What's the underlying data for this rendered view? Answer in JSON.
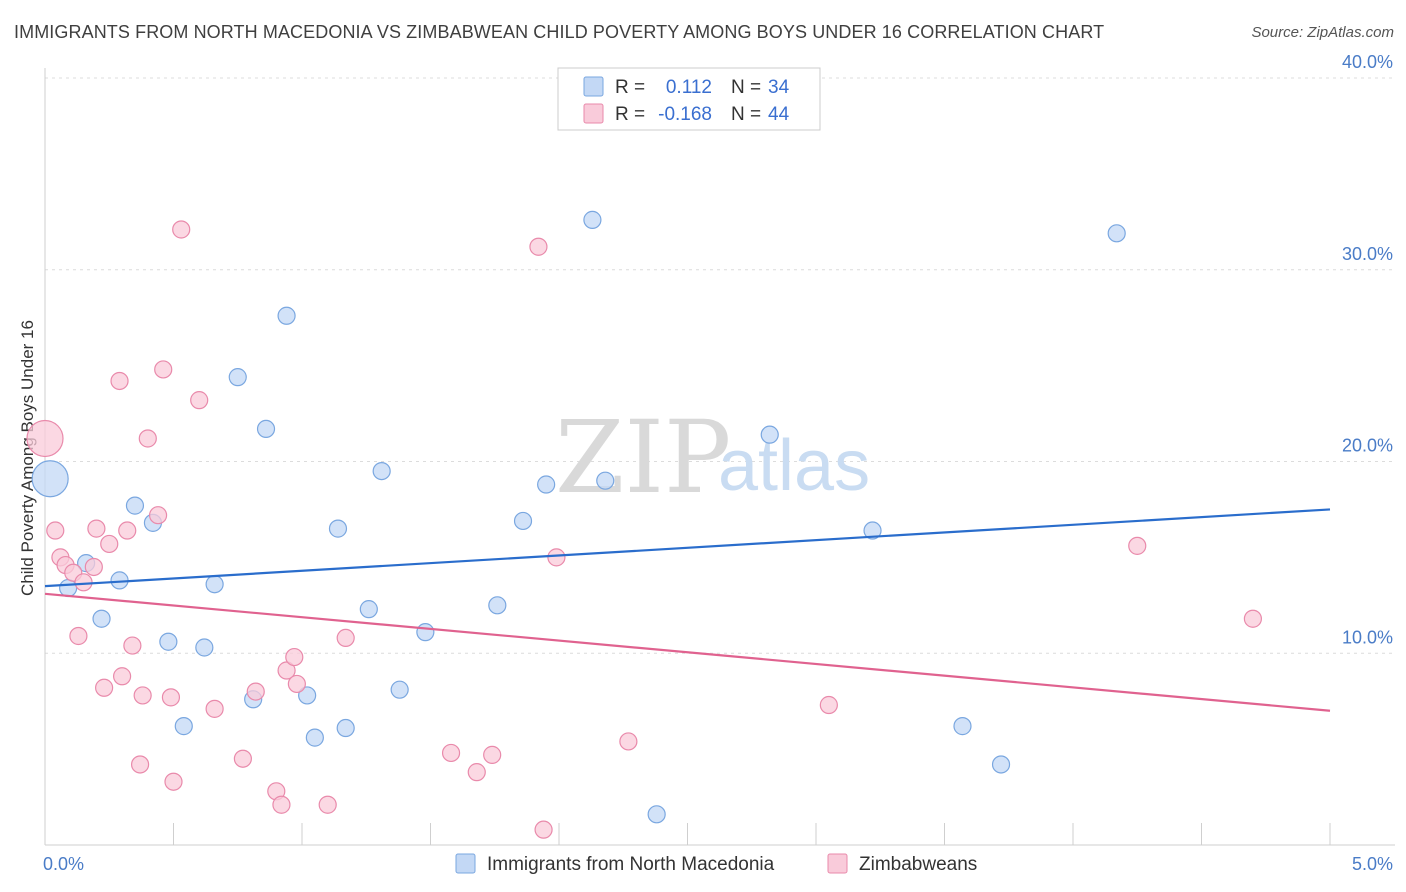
{
  "header": {
    "title": "IMMIGRANTS FROM NORTH MACEDONIA VS ZIMBABWEAN CHILD POVERTY AMONG BOYS UNDER 16 CORRELATION CHART",
    "source": "Source: ZipAtlas.com"
  },
  "watermark": {
    "zip": "ZIP",
    "atlas": "atlas"
  },
  "legend": {
    "r_label": "R =",
    "n_label": "N =",
    "rows": [
      {
        "r_value": "0.112",
        "n_value": "34"
      },
      {
        "r_value": "-0.168",
        "n_value": "44"
      }
    ]
  },
  "colors": {
    "blue_fill": "#c3d8f5",
    "blue_stroke": "#7aa7e0",
    "blue_line": "#2a6dcc",
    "pink_fill": "#f9cbda",
    "pink_stroke": "#e98aab",
    "pink_line": "#e0628f",
    "grid": "#dcdcdc",
    "tick_text": "#4a7cc7"
  },
  "chart_data": {
    "type": "scatter",
    "title": "IMMIGRANTS FROM NORTH MACEDONIA VS ZIMBABWEAN CHILD POVERTY AMONG BOYS UNDER 16 CORRELATION CHART",
    "xlabel": "",
    "ylabel": "Child Poverty Among Boys Under 16",
    "xlim": [
      0,
      5
    ],
    "ylim": [
      0,
      40
    ],
    "x_ticks": [
      "0.0%",
      "5.0%"
    ],
    "y_ticks": [
      {
        "value": 10,
        "label": "10.0%"
      },
      {
        "value": 20,
        "label": "20.0%"
      },
      {
        "value": 30,
        "label": "30.0%"
      },
      {
        "value": 40,
        "label": "40.0%"
      }
    ],
    "series": [
      {
        "name": "Immigrants from North Macedonia",
        "color": "#7aa7e0",
        "trend": {
          "x": [
            0,
            5
          ],
          "y": [
            13.5,
            17.5
          ]
        },
        "points": [
          {
            "x": 0.02,
            "y": 19.1,
            "big": true
          },
          {
            "x": 0.09,
            "y": 13.4
          },
          {
            "x": 0.16,
            "y": 14.7
          },
          {
            "x": 0.22,
            "y": 11.8
          },
          {
            "x": 0.29,
            "y": 13.8
          },
          {
            "x": 0.35,
            "y": 17.7
          },
          {
            "x": 0.42,
            "y": 16.8
          },
          {
            "x": 0.48,
            "y": 10.6
          },
          {
            "x": 0.54,
            "y": 6.2
          },
          {
            "x": 0.62,
            "y": 10.3
          },
          {
            "x": 0.66,
            "y": 13.6
          },
          {
            "x": 0.75,
            "y": 24.4
          },
          {
            "x": 0.81,
            "y": 7.6
          },
          {
            "x": 0.86,
            "y": 21.7
          },
          {
            "x": 0.94,
            "y": 27.6
          },
          {
            "x": 1.02,
            "y": 7.8
          },
          {
            "x": 1.05,
            "y": 5.6
          },
          {
            "x": 1.14,
            "y": 16.5
          },
          {
            "x": 1.17,
            "y": 6.1
          },
          {
            "x": 1.26,
            "y": 12.3
          },
          {
            "x": 1.31,
            "y": 19.5
          },
          {
            "x": 1.38,
            "y": 8.1
          },
          {
            "x": 1.48,
            "y": 11.1
          },
          {
            "x": 1.76,
            "y": 12.5
          },
          {
            "x": 1.86,
            "y": 16.9
          },
          {
            "x": 1.95,
            "y": 18.8
          },
          {
            "x": 2.13,
            "y": 32.6
          },
          {
            "x": 2.18,
            "y": 19.0
          },
          {
            "x": 2.38,
            "y": 1.6
          },
          {
            "x": 2.82,
            "y": 21.4
          },
          {
            "x": 3.22,
            "y": 16.4
          },
          {
            "x": 3.57,
            "y": 6.2
          },
          {
            "x": 3.72,
            "y": 4.2
          },
          {
            "x": 4.17,
            "y": 31.9
          }
        ]
      },
      {
        "name": "Zimbabweans",
        "color": "#e98aab",
        "trend": {
          "x": [
            0,
            5
          ],
          "y": [
            13.1,
            7.0
          ]
        },
        "points": [
          {
            "x": 0.0,
            "y": 21.2,
            "big": true
          },
          {
            "x": 0.04,
            "y": 16.4
          },
          {
            "x": 0.06,
            "y": 15.0
          },
          {
            "x": 0.08,
            "y": 14.6
          },
          {
            "x": 0.11,
            "y": 14.2
          },
          {
            "x": 0.13,
            "y": 10.9
          },
          {
            "x": 0.15,
            "y": 13.7
          },
          {
            "x": 0.19,
            "y": 14.5
          },
          {
            "x": 0.2,
            "y": 16.5
          },
          {
            "x": 0.23,
            "y": 8.2
          },
          {
            "x": 0.25,
            "y": 15.7
          },
          {
            "x": 0.29,
            "y": 24.2
          },
          {
            "x": 0.3,
            "y": 8.8
          },
          {
            "x": 0.32,
            "y": 16.4
          },
          {
            "x": 0.34,
            "y": 10.4
          },
          {
            "x": 0.37,
            "y": 4.2
          },
          {
            "x": 0.38,
            "y": 7.8
          },
          {
            "x": 0.4,
            "y": 21.2
          },
          {
            "x": 0.44,
            "y": 17.2
          },
          {
            "x": 0.46,
            "y": 24.8
          },
          {
            "x": 0.49,
            "y": 7.7
          },
          {
            "x": 0.5,
            "y": 3.3
          },
          {
            "x": 0.53,
            "y": 32.1
          },
          {
            "x": 0.6,
            "y": 23.2
          },
          {
            "x": 0.66,
            "y": 7.1
          },
          {
            "x": 0.77,
            "y": 4.5
          },
          {
            "x": 0.82,
            "y": 8.0
          },
          {
            "x": 0.9,
            "y": 2.8
          },
          {
            "x": 0.92,
            "y": 2.1
          },
          {
            "x": 0.94,
            "y": 9.1
          },
          {
            "x": 0.97,
            "y": 9.8
          },
          {
            "x": 0.98,
            "y": 8.4
          },
          {
            "x": 1.1,
            "y": 2.1
          },
          {
            "x": 1.17,
            "y": 10.8
          },
          {
            "x": 1.58,
            "y": 4.8
          },
          {
            "x": 1.68,
            "y": 3.8
          },
          {
            "x": 1.74,
            "y": 4.7
          },
          {
            "x": 1.92,
            "y": 31.2
          },
          {
            "x": 1.94,
            "y": 0.8
          },
          {
            "x": 1.99,
            "y": 15.0
          },
          {
            "x": 2.27,
            "y": 5.4
          },
          {
            "x": 3.05,
            "y": 7.3
          },
          {
            "x": 4.25,
            "y": 15.6
          },
          {
            "x": 4.7,
            "y": 11.8
          }
        ]
      }
    ]
  }
}
